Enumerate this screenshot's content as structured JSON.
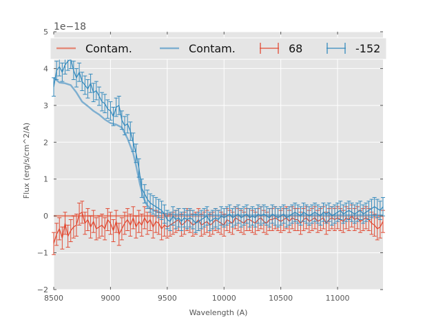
{
  "chart_data": {
    "type": "line",
    "title": "",
    "xlabel": "Wavelength (A)",
    "ylabel": "Flux (erg/s/cm^2/A)",
    "xlim": [
      8500,
      11400
    ],
    "ylim": [
      -2,
      5
    ],
    "y_offset_label": "1e−18",
    "x_ticks": [
      8500,
      9000,
      9500,
      10000,
      10500,
      11000
    ],
    "x_tick_labels": [
      "8500",
      "9000",
      "9500",
      "10000",
      "10500",
      "11000"
    ],
    "y_ticks": [
      -2,
      -1,
      0,
      1,
      2,
      3,
      4,
      5
    ],
    "y_tick_labels": [
      "−2",
      "−1",
      "0",
      "1",
      "2",
      "3",
      "4",
      "5"
    ],
    "grid": true,
    "legend_position": "top",
    "series": [
      {
        "name": "Contam.",
        "kind": "line",
        "color": "#e48b79",
        "x": [
          8500,
          9000,
          9500,
          10000,
          10500,
          11000,
          11400
        ],
        "y": [
          0.0,
          0.0,
          0.0,
          0.0,
          0.0,
          0.0,
          0.0
        ]
      },
      {
        "name": "Contam.",
        "kind": "line",
        "color": "#7eafd0",
        "x": [
          8500,
          8550,
          8600,
          8650,
          8700,
          8750,
          8800,
          8850,
          8900,
          8950,
          9000,
          9050,
          9100,
          9150,
          9200,
          9230,
          9260,
          9290,
          9320,
          9350,
          9400,
          9450,
          9500,
          9600,
          9800,
          10000,
          10500,
          11000,
          11400
        ],
        "y": [
          3.75,
          3.62,
          3.6,
          3.55,
          3.35,
          3.1,
          2.98,
          2.85,
          2.75,
          2.62,
          2.52,
          2.48,
          2.4,
          2.1,
          1.7,
          1.3,
          0.85,
          0.5,
          0.3,
          0.2,
          0.12,
          0.08,
          0.05,
          0.03,
          0.02,
          0.02,
          0.02,
          0.02,
          0.02
        ]
      },
      {
        "name": "68",
        "kind": "errorbar",
        "color": "#e24a33",
        "x": [
          8500,
          8525,
          8550,
          8575,
          8600,
          8625,
          8650,
          8675,
          8700,
          8725,
          8750,
          8775,
          8800,
          8825,
          8850,
          8875,
          8900,
          8925,
          8950,
          8975,
          9000,
          9025,
          9050,
          9075,
          9100,
          9125,
          9150,
          9175,
          9200,
          9225,
          9250,
          9275,
          9300,
          9325,
          9350,
          9375,
          9400,
          9425,
          9450,
          9475,
          9500,
          9525,
          9550,
          9575,
          9600,
          9625,
          9650,
          9675,
          9700,
          9725,
          9750,
          9775,
          9800,
          9825,
          9850,
          9875,
          9900,
          9925,
          9950,
          9975,
          10000,
          10025,
          10050,
          10075,
          10100,
          10125,
          10150,
          10175,
          10200,
          10225,
          10250,
          10275,
          10300,
          10325,
          10350,
          10375,
          10400,
          10425,
          10450,
          10475,
          10500,
          10525,
          10550,
          10575,
          10600,
          10625,
          10650,
          10675,
          10700,
          10725,
          10750,
          10775,
          10800,
          10825,
          10850,
          10875,
          10900,
          10925,
          10950,
          10975,
          11000,
          11025,
          11050,
          11075,
          11100,
          11125,
          11150,
          11175,
          11200,
          11225,
          11250,
          11275,
          11300,
          11325,
          11350,
          11375,
          11400
        ],
        "y": [
          -0.75,
          -0.5,
          -0.35,
          -0.6,
          -0.2,
          -0.55,
          -0.4,
          -0.3,
          -0.25,
          0.05,
          0.1,
          -0.2,
          -0.1,
          -0.3,
          -0.15,
          -0.35,
          -0.3,
          -0.25,
          -0.35,
          -0.1,
          -0.2,
          -0.4,
          -0.15,
          -0.5,
          -0.35,
          -0.2,
          -0.1,
          -0.25,
          -0.05,
          -0.3,
          -0.15,
          -0.25,
          -0.05,
          -0.2,
          -0.1,
          -0.3,
          -0.15,
          -0.2,
          -0.35,
          -0.25,
          -0.3,
          -0.25,
          -0.2,
          -0.15,
          -0.1,
          -0.25,
          -0.2,
          -0.1,
          -0.15,
          -0.25,
          -0.2,
          -0.1,
          -0.25,
          -0.2,
          -0.15,
          -0.25,
          -0.2,
          -0.1,
          -0.15,
          -0.2,
          -0.25,
          -0.1,
          -0.15,
          -0.2,
          -0.05,
          -0.1,
          -0.15,
          -0.2,
          -0.1,
          -0.1,
          -0.15,
          -0.2,
          -0.1,
          -0.05,
          -0.15,
          -0.2,
          -0.1,
          -0.1,
          -0.05,
          -0.1,
          -0.15,
          -0.1,
          -0.05,
          -0.15,
          -0.05,
          -0.1,
          -0.1,
          -0.2,
          -0.1,
          -0.05,
          -0.15,
          -0.1,
          -0.05,
          -0.15,
          -0.1,
          -0.05,
          -0.2,
          -0.1,
          -0.05,
          -0.1,
          -0.05,
          -0.1,
          -0.15,
          -0.05,
          -0.1,
          0.0,
          -0.1,
          -0.05,
          -0.15,
          -0.1,
          -0.05,
          -0.1,
          -0.2,
          -0.25,
          -0.35,
          -0.3,
          -0.15
        ],
        "error": 0.3
      },
      {
        "name": "-152",
        "kind": "errorbar",
        "color": "#348abd",
        "x": [
          8500,
          8525,
          8550,
          8575,
          8600,
          8625,
          8650,
          8675,
          8700,
          8725,
          8750,
          8775,
          8800,
          8825,
          8850,
          8875,
          8900,
          8925,
          8950,
          8975,
          9000,
          9025,
          9050,
          9075,
          9100,
          9125,
          9150,
          9175,
          9200,
          9225,
          9250,
          9275,
          9300,
          9325,
          9350,
          9375,
          9400,
          9425,
          9450,
          9475,
          9500,
          9525,
          9550,
          9575,
          9600,
          9625,
          9650,
          9675,
          9700,
          9725,
          9750,
          9775,
          9800,
          9825,
          9850,
          9875,
          9900,
          9925,
          9950,
          9975,
          10000,
          10025,
          10050,
          10075,
          10100,
          10125,
          10150,
          10175,
          10200,
          10225,
          10250,
          10275,
          10300,
          10325,
          10350,
          10375,
          10400,
          10425,
          10450,
          10475,
          10500,
          10525,
          10550,
          10575,
          10600,
          10625,
          10650,
          10675,
          10700,
          10725,
          10750,
          10775,
          10800,
          10825,
          10850,
          10875,
          10900,
          10925,
          10950,
          10975,
          11000,
          11025,
          11050,
          11075,
          11100,
          11125,
          11150,
          11175,
          11200,
          11225,
          11250,
          11275,
          11300,
          11325,
          11350,
          11375,
          11400
        ],
        "y": [
          3.5,
          3.95,
          4.05,
          3.9,
          4.1,
          4.2,
          4.25,
          3.95,
          3.75,
          3.9,
          3.65,
          3.55,
          3.45,
          3.6,
          3.35,
          3.4,
          3.25,
          3.1,
          3.05,
          2.9,
          2.85,
          2.7,
          2.95,
          3.0,
          2.6,
          2.45,
          2.5,
          2.3,
          2.0,
          1.7,
          1.3,
          0.75,
          0.6,
          0.45,
          0.35,
          0.3,
          0.25,
          0.2,
          0.15,
          0.05,
          -0.1,
          -0.15,
          0.0,
          -0.1,
          -0.05,
          -0.15,
          -0.05,
          -0.1,
          -0.05,
          -0.1,
          -0.2,
          -0.15,
          -0.1,
          -0.05,
          0.0,
          -0.15,
          -0.1,
          -0.05,
          -0.1,
          0.0,
          -0.05,
          0.0,
          0.05,
          -0.05,
          0.0,
          0.05,
          -0.05,
          0.0,
          0.05,
          -0.05,
          0.0,
          -0.05,
          0.05,
          0.0,
          0.05,
          0.0,
          -0.05,
          0.05,
          0.0,
          -0.05,
          0.0,
          0.05,
          -0.05,
          0.0,
          0.05,
          0.1,
          0.05,
          0.0,
          0.1,
          0.05,
          0.0,
          0.05,
          0.1,
          0.05,
          0.0,
          0.1,
          0.05,
          0.1,
          0.0,
          0.05,
          0.1,
          0.15,
          0.05,
          0.1,
          0.15,
          0.1,
          0.05,
          0.1,
          0.15,
          0.05,
          0.1,
          0.15,
          0.2,
          0.25,
          0.2,
          0.15,
          0.25
        ],
        "error": 0.25
      }
    ]
  }
}
